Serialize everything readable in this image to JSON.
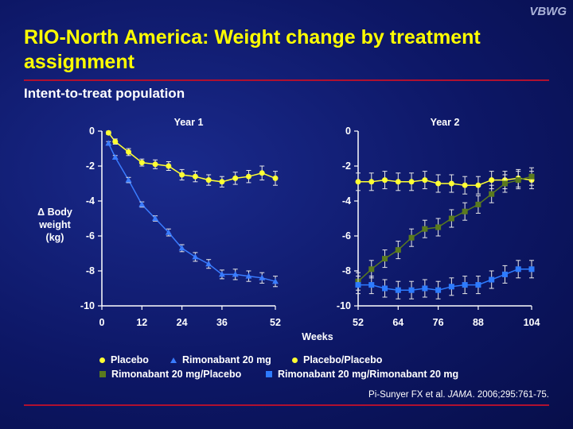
{
  "watermark": "VBWG",
  "title": "RIO-North America: Weight change by treatment assignment",
  "subtitle": "Intent-to-treat population",
  "ylabel_lines": [
    "Δ Body",
    "weight",
    "(kg)"
  ],
  "xlabel": "Weeks",
  "legend": {
    "placebo": "Placebo",
    "rimonabant": "Rimonabant 20 mg",
    "placebo_placebo": "Placebo/Placebo",
    "rimo_placebo": "Rimonabant 20 mg/Placebo",
    "rimo_rimo": "Rimonabant 20 mg/Rimonabant 20 mg"
  },
  "citation": {
    "authors": "Pi-Sunyer FX et al. ",
    "journal": "JAMA",
    "ref": ". 2006;295:761-75."
  },
  "colors": {
    "placebo": "#ffff33",
    "rimonabant": "#3a7cff",
    "rimo_placebo": "#5a7a1e",
    "rimo_rimo": "#2d7bff",
    "rule": "#b01030"
  },
  "chart_data": [
    {
      "type": "line",
      "title": "Year 1",
      "ylim": [
        -10,
        0
      ],
      "yticks": [
        0,
        -2,
        -4,
        -6,
        -8,
        -10
      ],
      "xlim": [
        0,
        52
      ],
      "xticks": [
        0,
        12,
        24,
        36,
        52
      ],
      "error_bars": true,
      "series": [
        {
          "name": "Placebo",
          "marker": "circle",
          "x": [
            2,
            4,
            8,
            12,
            16,
            20,
            24,
            28,
            32,
            36,
            40,
            44,
            48,
            52
          ],
          "y": [
            -0.1,
            -0.6,
            -1.2,
            -1.8,
            -1.9,
            -2.0,
            -2.5,
            -2.6,
            -2.8,
            -2.9,
            -2.7,
            -2.6,
            -2.4,
            -2.7
          ],
          "err": [
            0.1,
            0.15,
            0.2,
            0.2,
            0.25,
            0.25,
            0.3,
            0.3,
            0.3,
            0.3,
            0.35,
            0.35,
            0.4,
            0.4
          ]
        },
        {
          "name": "Rimonabant 20 mg",
          "marker": "triangle",
          "x": [
            2,
            4,
            8,
            12,
            16,
            20,
            24,
            28,
            32,
            36,
            40,
            44,
            48,
            52
          ],
          "y": [
            -0.7,
            -1.5,
            -2.8,
            -4.2,
            -5.0,
            -5.8,
            -6.7,
            -7.2,
            -7.6,
            -8.2,
            -8.2,
            -8.3,
            -8.4,
            -8.6
          ],
          "err": [
            0.1,
            0.1,
            0.15,
            0.15,
            0.15,
            0.2,
            0.2,
            0.25,
            0.25,
            0.25,
            0.3,
            0.3,
            0.3,
            0.3
          ]
        }
      ]
    },
    {
      "type": "line",
      "title": "Year 2",
      "ylim": [
        -10,
        0
      ],
      "yticks": [
        0,
        -2,
        -4,
        -6,
        -8,
        -10
      ],
      "xlim": [
        52,
        104
      ],
      "xticks": [
        52,
        64,
        76,
        88,
        104
      ],
      "error_bars": true,
      "series": [
        {
          "name": "Placebo/Placebo",
          "marker": "circle",
          "x": [
            52,
            56,
            60,
            64,
            68,
            72,
            76,
            80,
            84,
            88,
            92,
            96,
            100,
            104
          ],
          "y": [
            -2.9,
            -2.9,
            -2.8,
            -2.9,
            -2.9,
            -2.8,
            -3.0,
            -3.0,
            -3.1,
            -3.1,
            -2.8,
            -2.8,
            -2.7,
            -2.8
          ],
          "err": [
            0.5,
            0.5,
            0.5,
            0.5,
            0.5,
            0.5,
            0.5,
            0.5,
            0.5,
            0.5,
            0.5,
            0.5,
            0.5,
            0.5
          ]
        },
        {
          "name": "Rimonabant 20 mg/Placebo",
          "marker": "square",
          "x": [
            52,
            56,
            60,
            64,
            68,
            72,
            76,
            80,
            84,
            88,
            92,
            96,
            100,
            104
          ],
          "y": [
            -8.6,
            -7.9,
            -7.3,
            -6.8,
            -6.1,
            -5.6,
            -5.5,
            -5.0,
            -4.6,
            -4.2,
            -3.6,
            -3.0,
            -2.8,
            -2.6
          ],
          "err": [
            0.5,
            0.5,
            0.5,
            0.5,
            0.5,
            0.5,
            0.5,
            0.5,
            0.5,
            0.5,
            0.5,
            0.5,
            0.5,
            0.5
          ]
        },
        {
          "name": "Rimonabant 20 mg/Rimonabant 20 mg",
          "marker": "square",
          "x": [
            52,
            56,
            60,
            64,
            68,
            72,
            76,
            80,
            84,
            88,
            92,
            96,
            100,
            104
          ],
          "y": [
            -8.8,
            -8.8,
            -9.0,
            -9.1,
            -9.1,
            -9.0,
            -9.1,
            -8.9,
            -8.8,
            -8.8,
            -8.5,
            -8.2,
            -7.9,
            -7.9
          ],
          "err": [
            0.5,
            0.5,
            0.5,
            0.5,
            0.5,
            0.5,
            0.5,
            0.5,
            0.5,
            0.5,
            0.5,
            0.5,
            0.5,
            0.5
          ]
        }
      ]
    }
  ]
}
